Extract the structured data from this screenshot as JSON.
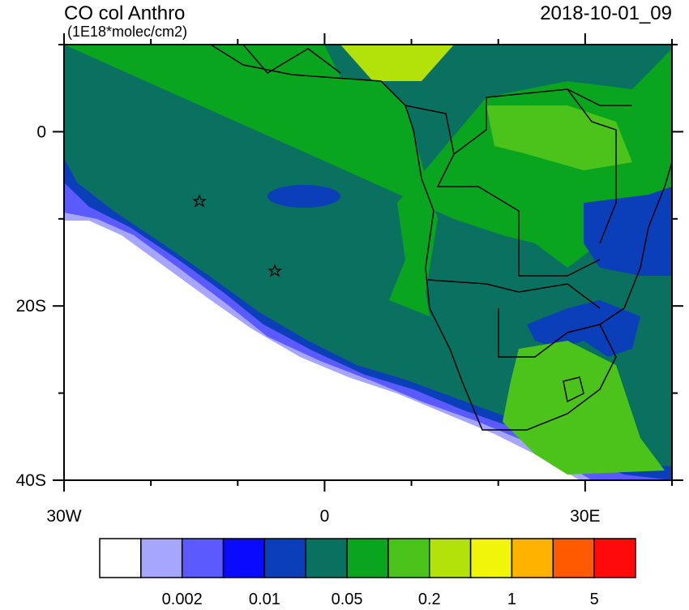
{
  "map": {
    "title": "CO col Anthro",
    "units": "(1E18*molec/cm2)",
    "date": "2018-10-01_09",
    "lonlim": [
      -30,
      40
    ],
    "latlim": [
      -40,
      10
    ],
    "lon_ticks": [
      {
        "value": -30,
        "label": "30W"
      },
      {
        "value": 0,
        "label": "0"
      },
      {
        "value": 30,
        "label": "30E"
      }
    ],
    "lat_ticks": [
      {
        "value": 0,
        "label": "0"
      },
      {
        "value": -20,
        "label": "20S"
      },
      {
        "value": -40,
        "label": "40S"
      }
    ],
    "minor_lon_ticks": [
      -20,
      -10,
      10,
      20,
      40
    ],
    "minor_lat_ticks": [
      10,
      -10,
      -30
    ],
    "colorbar": {
      "colors": [
        "#ffffff",
        "#a6a6ff",
        "#5a5aff",
        "#0a0aff",
        "#0b3fb9",
        "#0a7060",
        "#0aa51e",
        "#4cc31a",
        "#b2e20a",
        "#f0f50a",
        "#ffb300",
        "#ff5a00",
        "#ff0a0a"
      ],
      "labels": [
        "0.002",
        "0.01",
        "0.05",
        "0.2",
        "1",
        "5"
      ]
    }
  }
}
